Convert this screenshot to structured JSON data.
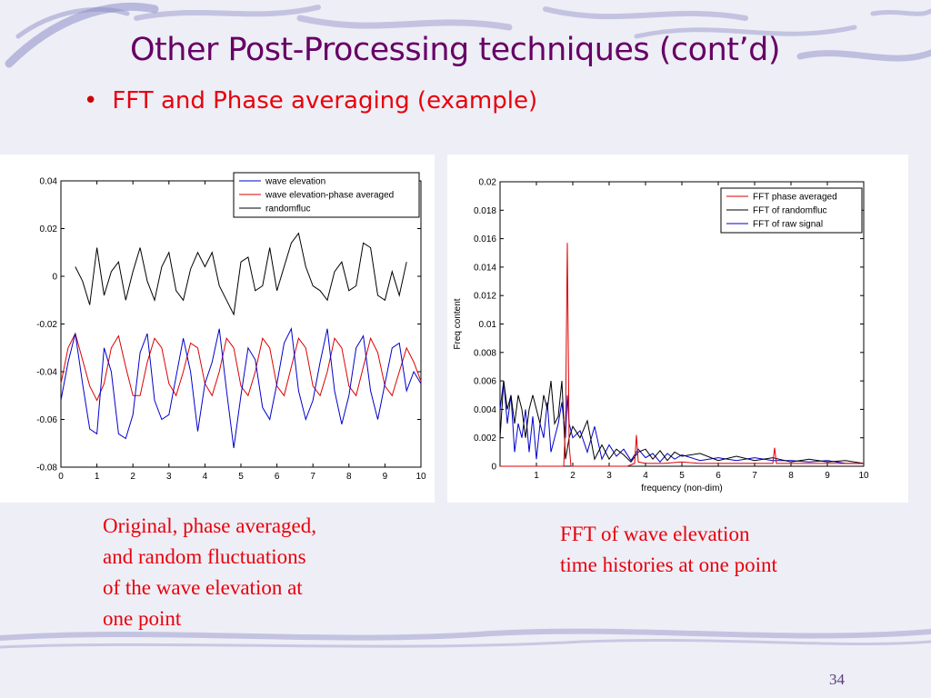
{
  "slide": {
    "title": "Other Post-Processing techniques (cont’d)",
    "bullet": "FFT and Phase averaging (example)",
    "bullet_symbol": "•",
    "caption_left": [
      "Original, phase averaged,",
      "and random fluctuations",
      "of the wave elevation at",
      "one point"
    ],
    "caption_right": [
      "FFT of wave elevation",
      "time histories at one point"
    ],
    "page_number": "34",
    "colors": {
      "title": "#660066",
      "bullet": "#e8000b",
      "caption": "#e8000b",
      "decoration": "#8e8ec8"
    }
  },
  "chart_data": [
    {
      "type": "line",
      "title": "",
      "xlabel": "",
      "ylabel": "",
      "xlim": [
        0,
        10
      ],
      "ylim": [
        -0.08,
        0.04
      ],
      "x_ticks": [
        0,
        1,
        2,
        3,
        4,
        5,
        6,
        7,
        8,
        9,
        10
      ],
      "y_ticks": [
        -0.08,
        -0.06,
        -0.04,
        -0.02,
        0,
        0.02,
        0.04
      ],
      "y_tick_labels": [
        "-0.08",
        "-0.06",
        "-0.04",
        "-0.02",
        "0",
        "0.02",
        "0.04"
      ],
      "legend_position": "top-right",
      "grid": false,
      "series": [
        {
          "name": "wave elevation",
          "color": "#0000cc",
          "x": [
            0,
            0.2,
            0.4,
            0.6,
            0.8,
            1.0,
            1.2,
            1.4,
            1.6,
            1.8,
            2.0,
            2.2,
            2.4,
            2.6,
            2.8,
            3.0,
            3.2,
            3.4,
            3.6,
            3.8,
            4.0,
            4.2,
            4.4,
            4.6,
            4.8,
            5.0,
            5.2,
            5.4,
            5.6,
            5.8,
            6.0,
            6.2,
            6.4,
            6.6,
            6.8,
            7.0,
            7.2,
            7.4,
            7.6,
            7.8,
            8.0,
            8.2,
            8.4,
            8.6,
            8.8,
            9.0,
            9.2,
            9.4,
            9.6,
            9.8,
            10.0
          ],
          "y": [
            -0.052,
            -0.036,
            -0.024,
            -0.045,
            -0.064,
            -0.066,
            -0.03,
            -0.04,
            -0.066,
            -0.068,
            -0.058,
            -0.032,
            -0.024,
            -0.052,
            -0.06,
            -0.058,
            -0.042,
            -0.026,
            -0.04,
            -0.065,
            -0.045,
            -0.036,
            -0.022,
            -0.048,
            -0.072,
            -0.05,
            -0.03,
            -0.035,
            -0.055,
            -0.06,
            -0.045,
            -0.028,
            -0.022,
            -0.048,
            -0.06,
            -0.052,
            -0.036,
            -0.022,
            -0.048,
            -0.062,
            -0.05,
            -0.03,
            -0.025,
            -0.048,
            -0.06,
            -0.045,
            -0.03,
            -0.028,
            -0.048,
            -0.04,
            -0.045
          ]
        },
        {
          "name": "wave elevation-phase averaged",
          "color": "#dd0000",
          "x": [
            0,
            0.2,
            0.4,
            0.6,
            0.8,
            1.0,
            1.2,
            1.4,
            1.6,
            1.8,
            2.0,
            2.2,
            2.4,
            2.6,
            2.8,
            3.0,
            3.2,
            3.4,
            3.6,
            3.8,
            4.0,
            4.2,
            4.4,
            4.6,
            4.8,
            5.0,
            5.2,
            5.4,
            5.6,
            5.8,
            6.0,
            6.2,
            6.4,
            6.6,
            6.8,
            7.0,
            7.2,
            7.4,
            7.6,
            7.8,
            8.0,
            8.2,
            8.4,
            8.6,
            8.8,
            9.0,
            9.2,
            9.4,
            9.6,
            9.8,
            10.0
          ],
          "y": [
            -0.045,
            -0.03,
            -0.024,
            -0.035,
            -0.046,
            -0.052,
            -0.045,
            -0.03,
            -0.025,
            -0.038,
            -0.05,
            -0.05,
            -0.036,
            -0.026,
            -0.03,
            -0.045,
            -0.05,
            -0.04,
            -0.028,
            -0.03,
            -0.045,
            -0.05,
            -0.04,
            -0.026,
            -0.03,
            -0.046,
            -0.05,
            -0.04,
            -0.026,
            -0.03,
            -0.046,
            -0.05,
            -0.038,
            -0.026,
            -0.03,
            -0.046,
            -0.05,
            -0.04,
            -0.026,
            -0.03,
            -0.046,
            -0.05,
            -0.038,
            -0.026,
            -0.032,
            -0.046,
            -0.05,
            -0.04,
            -0.03,
            -0.036,
            -0.044
          ]
        },
        {
          "name": "randomfluc",
          "color": "#000000",
          "x": [
            0.4,
            0.6,
            0.8,
            1.0,
            1.2,
            1.4,
            1.6,
            1.8,
            2.0,
            2.2,
            2.4,
            2.6,
            2.8,
            3.0,
            3.2,
            3.4,
            3.6,
            3.8,
            4.0,
            4.2,
            4.4,
            4.6,
            4.8,
            5.0,
            5.2,
            5.4,
            5.6,
            5.8,
            6.0,
            6.2,
            6.4,
            6.6,
            6.8,
            7.0,
            7.2,
            7.4,
            7.6,
            7.8,
            8.0,
            8.2,
            8.4,
            8.6,
            8.8,
            9.0,
            9.2,
            9.4,
            9.6
          ],
          "y": [
            0.004,
            -0.002,
            -0.012,
            0.012,
            -0.008,
            0.002,
            0.006,
            -0.01,
            0.002,
            0.012,
            -0.002,
            -0.01,
            0.004,
            0.01,
            -0.006,
            -0.01,
            0.003,
            0.01,
            0.004,
            0.01,
            -0.004,
            -0.01,
            -0.016,
            0.006,
            0.008,
            -0.006,
            -0.004,
            0.012,
            -0.006,
            0.004,
            0.014,
            0.018,
            0.004,
            -0.004,
            -0.006,
            -0.01,
            0.002,
            0.006,
            -0.006,
            -0.004,
            0.014,
            0.012,
            -0.008,
            -0.01,
            0.002,
            -0.008,
            0.006
          ]
        }
      ]
    },
    {
      "type": "line",
      "title": "",
      "xlabel": "frequency (non-dim)",
      "ylabel": "Freq content",
      "xlim": [
        0,
        10
      ],
      "ylim": [
        0,
        0.02
      ],
      "x_ticks": [
        1,
        2,
        3,
        4,
        5,
        6,
        7,
        8,
        9,
        10
      ],
      "y_ticks": [
        0,
        0.002,
        0.004,
        0.006,
        0.008,
        0.01,
        0.012,
        0.014,
        0.016,
        0.018,
        0.02
      ],
      "y_tick_labels": [
        "0",
        "0.002",
        "0.004",
        "0.006",
        "0.008",
        "0.01",
        "0.012",
        "0.014",
        "0.016",
        "0.018",
        "0.02"
      ],
      "legend_position": "top-right",
      "grid": false,
      "series": [
        {
          "name": "FFT phase averaged",
          "color": "#dd0000",
          "x": [
            0,
            1.75,
            1.8,
            1.85,
            1.9,
            1.95,
            2.0,
            2.5,
            3.0,
            3.5,
            3.7,
            3.75,
            3.8,
            4.0,
            4.5,
            5.0,
            5.5,
            6.0,
            6.5,
            7.0,
            7.5,
            7.55,
            7.6,
            8.0,
            8.5,
            9.0,
            9.5,
            10.0
          ],
          "y": [
            0,
            0,
            0.003,
            0.0157,
            0.0015,
            0,
            0,
            0,
            0,
            0,
            0.0002,
            0.0022,
            0.0003,
            0.0002,
            0.0002,
            0.0003,
            0.0002,
            0.0002,
            0.0002,
            0.0002,
            0.0002,
            0.0013,
            0.0002,
            0.0002,
            0.0002,
            0.0002,
            0.0002,
            0.0002
          ]
        },
        {
          "name": "FFT of randomfluc",
          "color": "#000000",
          "x": [
            0,
            0.1,
            0.2,
            0.3,
            0.4,
            0.5,
            0.6,
            0.7,
            0.8,
            0.9,
            1.0,
            1.1,
            1.2,
            1.3,
            1.4,
            1.5,
            1.6,
            1.7,
            1.8,
            1.9,
            2.0,
            2.2,
            2.4,
            2.6,
            2.8,
            3.0,
            3.2,
            3.4,
            3.6,
            3.8,
            4.0,
            4.2,
            4.4,
            4.6,
            4.8,
            5.0,
            5.5,
            6.0,
            6.5,
            7.0,
            7.5,
            8.0,
            8.5,
            9.0,
            9.5,
            10.0
          ],
          "y": [
            0.002,
            0.006,
            0.004,
            0.005,
            0.003,
            0.005,
            0.004,
            0.002,
            0.004,
            0.005,
            0.004,
            0.003,
            0.005,
            0.004,
            0.006,
            0.003,
            0.0035,
            0.006,
            0.0005,
            0.002,
            0.0028,
            0.002,
            0.0032,
            0.0005,
            0.0015,
            0.0005,
            0.0012,
            0.0008,
            0.0003,
            0.001,
            0.0012,
            0.0005,
            0.0011,
            0.0004,
            0.001,
            0.0007,
            0.0009,
            0.0004,
            0.0007,
            0.0004,
            0.0006,
            0.0003,
            0.0005,
            0.0003,
            0.0004,
            0.0002
          ]
        },
        {
          "name": "FFT of raw signal",
          "color": "#0000cc",
          "x": [
            0,
            0.1,
            0.2,
            0.3,
            0.4,
            0.5,
            0.6,
            0.7,
            0.8,
            0.9,
            1.0,
            1.1,
            1.2,
            1.3,
            1.4,
            1.5,
            1.6,
            1.7,
            1.8,
            1.85,
            1.9,
            2.0,
            2.2,
            2.4,
            2.6,
            2.8,
            3.0,
            3.2,
            3.4,
            3.6,
            3.8,
            4.0,
            4.2,
            4.4,
            4.6,
            4.8,
            5.0,
            5.5,
            6.0,
            6.5,
            7.0,
            7.5,
            8.0,
            8.5,
            9.0,
            9.5,
            10.0
          ],
          "y": [
            0.004,
            0.006,
            0.003,
            0.005,
            0.001,
            0.003,
            0.002,
            0.004,
            0.001,
            0.0035,
            0.0005,
            0.003,
            0.002,
            0.0045,
            0.001,
            0.002,
            0.003,
            0.0045,
            0.002,
            0.005,
            0.003,
            0.002,
            0.0025,
            0.001,
            0.0028,
            0.0005,
            0.0015,
            0.0007,
            0.0012,
            0.0004,
            0.0012,
            0.0006,
            0.0009,
            0.0003,
            0.0009,
            0.0005,
            0.0008,
            0.0004,
            0.0006,
            0.0004,
            0.0006,
            0.0004,
            0.0004,
            0.0003,
            0.0004,
            0.0002,
            0.0002
          ]
        }
      ]
    }
  ]
}
